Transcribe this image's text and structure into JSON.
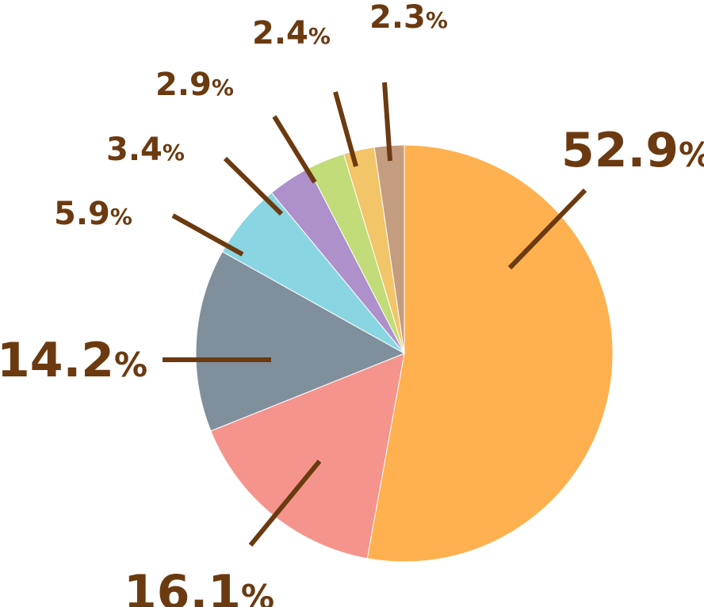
{
  "chart_data": {
    "type": "pie",
    "start_angle_deg": 0,
    "direction": "clockwise",
    "label_color": "#6b3a10",
    "slices": [
      {
        "value": 52.9,
        "label": "52.9",
        "unit": "%",
        "color": "#ffb04f"
      },
      {
        "value": 16.1,
        "label": "16.1",
        "unit": "%",
        "color": "#f5948c"
      },
      {
        "value": 14.2,
        "label": "14.2",
        "unit": "%",
        "color": "#808f9c"
      },
      {
        "value": 5.9,
        "label": "5.9",
        "unit": "%",
        "color": "#89d6e2"
      },
      {
        "value": 3.4,
        "label": "3.4",
        "unit": "%",
        "color": "#ae90cb"
      },
      {
        "value": 2.9,
        "label": "2.9",
        "unit": "%",
        "color": "#c1dc79"
      },
      {
        "value": 2.4,
        "label": "2.4",
        "unit": "%",
        "color": "#f2c568"
      },
      {
        "value": 2.3,
        "label": "2.3",
        "unit": "%",
        "color": "#c49c7f"
      }
    ]
  }
}
